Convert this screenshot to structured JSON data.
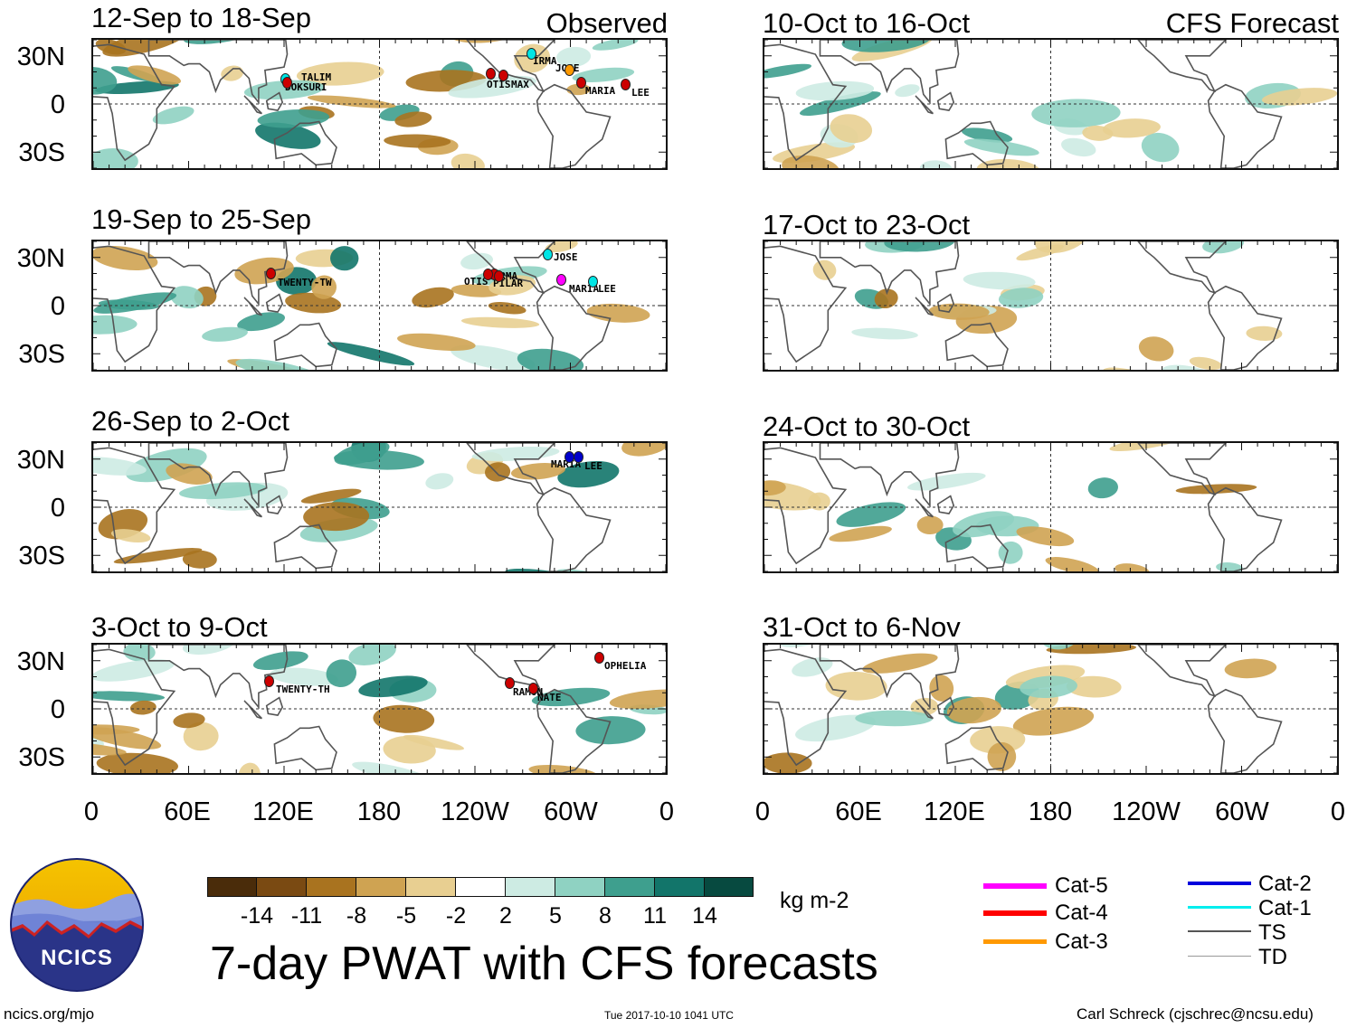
{
  "panels_left": [
    {
      "title": "12-Sep to 18-Sep",
      "tag": "Observed",
      "storms": [
        {
          "name": "TALIM",
          "color": "#00e5e5"
        },
        {
          "name": "DOKSURI",
          "color": "#cc0000"
        },
        {
          "name": "IRMA",
          "color": "#00e5e5"
        },
        {
          "name": "JOSE",
          "color": "#ff9900"
        },
        {
          "name": "OTIS",
          "color": "#cc0000"
        },
        {
          "name": "MAX",
          "color": "#cc0000"
        },
        {
          "name": "MARIA",
          "color": "#cc0000"
        },
        {
          "name": "LEE",
          "color": "#cc0000"
        }
      ]
    },
    {
      "title": "19-Sep to 25-Sep",
      "tag": "",
      "storms": [
        {
          "name": "TWENTY-TW",
          "color": "#cc0000"
        },
        {
          "name": "JOSE",
          "color": "#00e5e5"
        },
        {
          "name": "NORMA",
          "color": "#cc0000"
        },
        {
          "name": "OTIS",
          "color": "#cc0000"
        },
        {
          "name": "PILAR",
          "color": "#cc0000"
        },
        {
          "name": "MARIA",
          "color": "#ff00ff"
        },
        {
          "name": "LEE",
          "color": "#00e5e5"
        }
      ]
    },
    {
      "title": "26-Sep to 2-Oct",
      "tag": "",
      "storms": [
        {
          "name": "MARIA",
          "color": "#0000cc"
        },
        {
          "name": "LEE",
          "color": "#0000cc"
        }
      ]
    },
    {
      "title": "3-Oct to 9-Oct",
      "tag": "",
      "storms": [
        {
          "name": "TWENTY-TH",
          "color": "#cc0000"
        },
        {
          "name": "OPHELIA",
          "color": "#cc0000"
        },
        {
          "name": "RAMON",
          "color": "#cc0000"
        },
        {
          "name": "NATE",
          "color": "#cc0000"
        }
      ]
    }
  ],
  "panels_right": [
    {
      "title": "10-Oct to 16-Oct",
      "tag": "CFS Forecast"
    },
    {
      "title": "17-Oct to 23-Oct",
      "tag": ""
    },
    {
      "title": "24-Oct to 30-Oct",
      "tag": ""
    },
    {
      "title": "31-Oct to 6-Nov",
      "tag": ""
    }
  ],
  "lat_labels": [
    "30N",
    "0",
    "30S"
  ],
  "lon_labels": [
    "0",
    "60E",
    "120E",
    "180",
    "120W",
    "60W",
    "0"
  ],
  "colorbar": {
    "unit": "kg m-2",
    "tick_labels": [
      "-14",
      "-11",
      "-8",
      "-5",
      "-2",
      "2",
      "5",
      "8",
      "11",
      "14"
    ],
    "colors": [
      "#4a2c0a",
      "#7a4a12",
      "#a9731f",
      "#cfa352",
      "#e8cf91",
      "#f6ecce",
      "#ffffff",
      "#cdebe3",
      "#8fd2c2",
      "#3e9f8e",
      "#12756a",
      "#074a40"
    ]
  },
  "legend": [
    {
      "label": "Cat-5",
      "color": "#ff00ff",
      "weight": "cat"
    },
    {
      "label": "Cat-4",
      "color": "#ff0000",
      "weight": "cat"
    },
    {
      "label": "Cat-3",
      "color": "#ff9900",
      "weight": "cat"
    },
    {
      "label": "Cat-2",
      "color": "#0000dd",
      "weight": "cat"
    },
    {
      "label": "Cat-1",
      "color": "#00eeee",
      "weight": "cat"
    },
    {
      "label": "TS",
      "color": "#555555",
      "weight": "ts"
    },
    {
      "label": "TD",
      "color": "#999999",
      "weight": "td"
    }
  ],
  "logo_text": "NCICS",
  "main_title": "7-day PWAT with CFS forecasts",
  "footer": {
    "left": "ncics.org/mjo",
    "center": "Tue 2017-10-10 1041 UTC",
    "right": "Carl Schreck (cjschrec@ncsu.edu)"
  }
}
